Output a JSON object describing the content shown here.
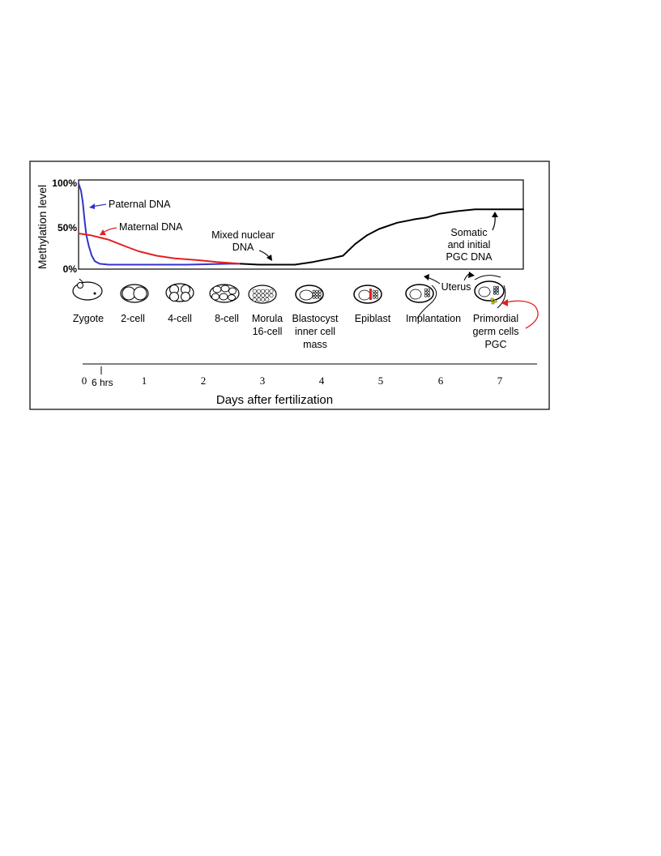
{
  "chart_data": {
    "type": "line",
    "ylabel": "Methylation level",
    "xlabel": "Days after fertilization",
    "ylim": [
      0,
      100
    ],
    "yticks": [
      "0%",
      "50%",
      "100%"
    ],
    "xticks": [
      "0",
      "1",
      "2",
      "3",
      "4",
      "5",
      "6",
      "7"
    ],
    "x_extra_tick": "6 hrs",
    "xlim": [
      0,
      7.4
    ],
    "series": [
      {
        "name": "Paternal DNA",
        "color": "#3333cc",
        "x": [
          0,
          0.04,
          0.07,
          0.1,
          0.13,
          0.17,
          0.22,
          0.27,
          0.35,
          0.5,
          0.8,
          1.2,
          1.8,
          2.5,
          2.7
        ],
        "y": [
          96,
          88,
          75,
          55,
          38,
          26,
          15,
          9,
          6,
          5,
          5,
          5,
          5,
          6,
          6
        ]
      },
      {
        "name": "Maternal DNA",
        "color": "#e81e1e",
        "x": [
          0,
          0.2,
          0.5,
          0.8,
          1.0,
          1.3,
          1.6,
          2.0,
          2.3,
          2.7
        ],
        "y": [
          40,
          38,
          33,
          25,
          20,
          15,
          12,
          10,
          8,
          6
        ]
      },
      {
        "name": "Mixed nuclear DNA",
        "color": "#000000",
        "x": [
          2.7,
          3.0,
          3.3,
          3.6,
          3.9,
          4.2,
          4.4,
          4.6,
          4.8,
          5.0,
          5.3,
          5.6,
          5.8,
          6.0,
          6.3,
          6.6,
          6.9,
          7.2,
          7.4
        ],
        "y": [
          6,
          5,
          5,
          5,
          8,
          12,
          15,
          28,
          38,
          45,
          52,
          56,
          58,
          62,
          65,
          67,
          67,
          67,
          67
        ]
      }
    ],
    "annotations": [
      "Paternal DNA",
      "Maternal DNA",
      "Mixed nuclear DNA",
      "Somatic and initial PGC DNA"
    ]
  },
  "labels": {
    "mixed_line1": "Mixed nuclear",
    "mixed_line2": "DNA",
    "somatic_line1": "Somatic",
    "somatic_line2": "and initial",
    "somatic_line3": "PGC DNA",
    "uterus": "Uterus"
  },
  "stages": [
    {
      "lines": [
        "Zygote"
      ]
    },
    {
      "lines": [
        "2-cell"
      ]
    },
    {
      "lines": [
        "4-cell"
      ]
    },
    {
      "lines": [
        "8-cell"
      ]
    },
    {
      "lines": [
        "Morula",
        "16-cell"
      ]
    },
    {
      "lines": [
        "Blastocyst",
        "inner cell",
        "mass"
      ]
    },
    {
      "lines": [
        "Epiblast"
      ]
    },
    {
      "lines": [
        "Implantation"
      ]
    },
    {
      "lines": [
        "Primordial",
        "germ cells",
        "PGC"
      ]
    }
  ]
}
